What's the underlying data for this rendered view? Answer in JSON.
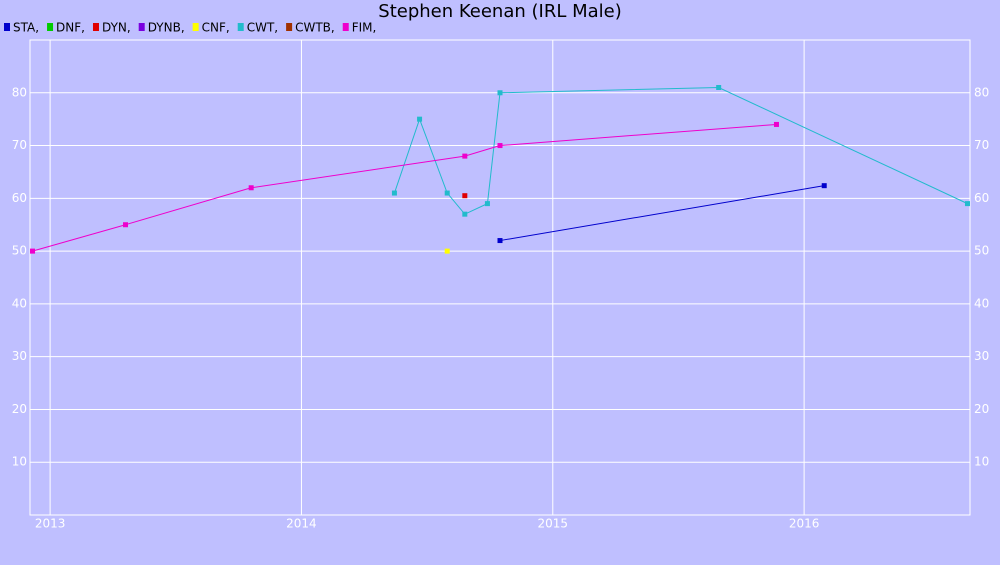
{
  "chart_data": {
    "type": "line",
    "title": "Stephen Keenan (IRL Male)",
    "xlim": [
      2012.92,
      2016.66
    ],
    "xticks": [
      2013,
      2014,
      2015,
      2016
    ],
    "ylim": [
      0,
      90
    ],
    "yticks": [
      10,
      20,
      30,
      40,
      50,
      60,
      70,
      80
    ],
    "grid": true,
    "series": [
      {
        "name": "STA,",
        "color": "#0000cc",
        "x": [
          2014.79,
          2016.08
        ],
        "values": [
          52,
          62.4
        ]
      },
      {
        "name": "DNF,",
        "color": "#00cc00",
        "x": [],
        "values": []
      },
      {
        "name": "DYN,",
        "color": "#e00000",
        "x": [
          2014.65
        ],
        "values": [
          60.5
        ]
      },
      {
        "name": "DYNB,",
        "color": "#7a00e0",
        "x": [],
        "values": []
      },
      {
        "name": "CNF,",
        "color": "#ffff00",
        "x": [
          2014.58
        ],
        "values": [
          50
        ]
      },
      {
        "name": "CWT,",
        "color": "#22bbcc",
        "x": [
          2014.37,
          2014.47,
          2014.58,
          2014.65,
          2014.74,
          2014.79,
          2015.66,
          2016.65
        ],
        "values": [
          61,
          75,
          61,
          57,
          59,
          80,
          81,
          59
        ]
      },
      {
        "name": "CWTB,",
        "color": "#a03000",
        "x": [],
        "values": []
      },
      {
        "name": "FIM,",
        "color": "#ee00cc",
        "x": [
          2012.93,
          2013.3,
          2013.8,
          2014.65,
          2014.79,
          2015.89
        ],
        "values": [
          50,
          55,
          62,
          68,
          70,
          74
        ]
      }
    ]
  }
}
